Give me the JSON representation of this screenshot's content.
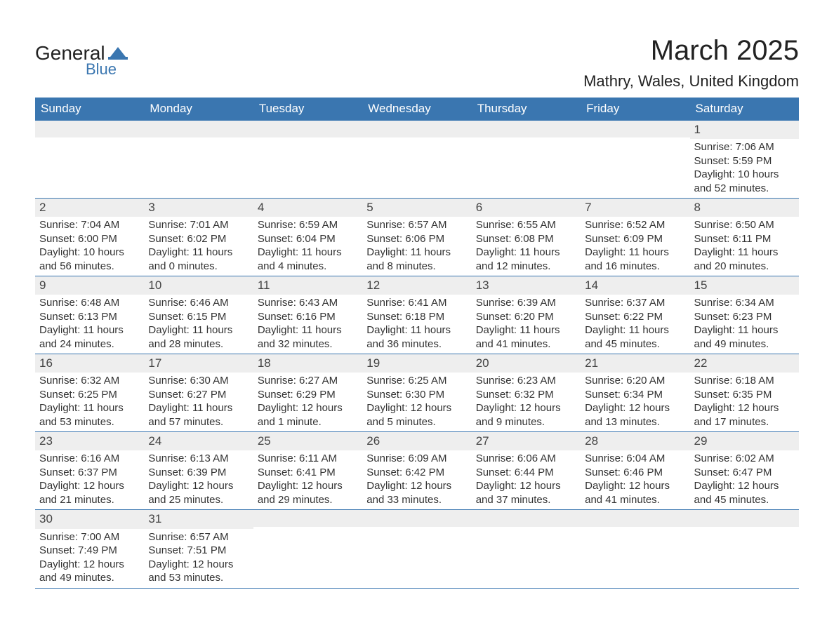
{
  "brand": {
    "word1": "General",
    "word2": "Blue",
    "accent_color": "#3a76b0",
    "text_color": "#222222"
  },
  "header": {
    "title": "March 2025",
    "location": "Mathry, Wales, United Kingdom",
    "title_fontsize": 40,
    "location_fontsize": 22
  },
  "calendar": {
    "type": "table",
    "header_bg": "#3a76b0",
    "header_fg": "#ffffff",
    "daybar_bg": "#eeeeee",
    "border_color": "#3a76b0",
    "text_color": "#333333",
    "body_fontsize": 15,
    "daynum_fontsize": 17,
    "days_of_week": [
      "Sunday",
      "Monday",
      "Tuesday",
      "Wednesday",
      "Thursday",
      "Friday",
      "Saturday"
    ],
    "weeks": [
      [
        null,
        null,
        null,
        null,
        null,
        null,
        {
          "n": "1",
          "sunrise": "Sunrise: 7:06 AM",
          "sunset": "Sunset: 5:59 PM",
          "daylight": "Daylight: 10 hours and 52 minutes."
        }
      ],
      [
        {
          "n": "2",
          "sunrise": "Sunrise: 7:04 AM",
          "sunset": "Sunset: 6:00 PM",
          "daylight": "Daylight: 10 hours and 56 minutes."
        },
        {
          "n": "3",
          "sunrise": "Sunrise: 7:01 AM",
          "sunset": "Sunset: 6:02 PM",
          "daylight": "Daylight: 11 hours and 0 minutes."
        },
        {
          "n": "4",
          "sunrise": "Sunrise: 6:59 AM",
          "sunset": "Sunset: 6:04 PM",
          "daylight": "Daylight: 11 hours and 4 minutes."
        },
        {
          "n": "5",
          "sunrise": "Sunrise: 6:57 AM",
          "sunset": "Sunset: 6:06 PM",
          "daylight": "Daylight: 11 hours and 8 minutes."
        },
        {
          "n": "6",
          "sunrise": "Sunrise: 6:55 AM",
          "sunset": "Sunset: 6:08 PM",
          "daylight": "Daylight: 11 hours and 12 minutes."
        },
        {
          "n": "7",
          "sunrise": "Sunrise: 6:52 AM",
          "sunset": "Sunset: 6:09 PM",
          "daylight": "Daylight: 11 hours and 16 minutes."
        },
        {
          "n": "8",
          "sunrise": "Sunrise: 6:50 AM",
          "sunset": "Sunset: 6:11 PM",
          "daylight": "Daylight: 11 hours and 20 minutes."
        }
      ],
      [
        {
          "n": "9",
          "sunrise": "Sunrise: 6:48 AM",
          "sunset": "Sunset: 6:13 PM",
          "daylight": "Daylight: 11 hours and 24 minutes."
        },
        {
          "n": "10",
          "sunrise": "Sunrise: 6:46 AM",
          "sunset": "Sunset: 6:15 PM",
          "daylight": "Daylight: 11 hours and 28 minutes."
        },
        {
          "n": "11",
          "sunrise": "Sunrise: 6:43 AM",
          "sunset": "Sunset: 6:16 PM",
          "daylight": "Daylight: 11 hours and 32 minutes."
        },
        {
          "n": "12",
          "sunrise": "Sunrise: 6:41 AM",
          "sunset": "Sunset: 6:18 PM",
          "daylight": "Daylight: 11 hours and 36 minutes."
        },
        {
          "n": "13",
          "sunrise": "Sunrise: 6:39 AM",
          "sunset": "Sunset: 6:20 PM",
          "daylight": "Daylight: 11 hours and 41 minutes."
        },
        {
          "n": "14",
          "sunrise": "Sunrise: 6:37 AM",
          "sunset": "Sunset: 6:22 PM",
          "daylight": "Daylight: 11 hours and 45 minutes."
        },
        {
          "n": "15",
          "sunrise": "Sunrise: 6:34 AM",
          "sunset": "Sunset: 6:23 PM",
          "daylight": "Daylight: 11 hours and 49 minutes."
        }
      ],
      [
        {
          "n": "16",
          "sunrise": "Sunrise: 6:32 AM",
          "sunset": "Sunset: 6:25 PM",
          "daylight": "Daylight: 11 hours and 53 minutes."
        },
        {
          "n": "17",
          "sunrise": "Sunrise: 6:30 AM",
          "sunset": "Sunset: 6:27 PM",
          "daylight": "Daylight: 11 hours and 57 minutes."
        },
        {
          "n": "18",
          "sunrise": "Sunrise: 6:27 AM",
          "sunset": "Sunset: 6:29 PM",
          "daylight": "Daylight: 12 hours and 1 minute."
        },
        {
          "n": "19",
          "sunrise": "Sunrise: 6:25 AM",
          "sunset": "Sunset: 6:30 PM",
          "daylight": "Daylight: 12 hours and 5 minutes."
        },
        {
          "n": "20",
          "sunrise": "Sunrise: 6:23 AM",
          "sunset": "Sunset: 6:32 PM",
          "daylight": "Daylight: 12 hours and 9 minutes."
        },
        {
          "n": "21",
          "sunrise": "Sunrise: 6:20 AM",
          "sunset": "Sunset: 6:34 PM",
          "daylight": "Daylight: 12 hours and 13 minutes."
        },
        {
          "n": "22",
          "sunrise": "Sunrise: 6:18 AM",
          "sunset": "Sunset: 6:35 PM",
          "daylight": "Daylight: 12 hours and 17 minutes."
        }
      ],
      [
        {
          "n": "23",
          "sunrise": "Sunrise: 6:16 AM",
          "sunset": "Sunset: 6:37 PM",
          "daylight": "Daylight: 12 hours and 21 minutes."
        },
        {
          "n": "24",
          "sunrise": "Sunrise: 6:13 AM",
          "sunset": "Sunset: 6:39 PM",
          "daylight": "Daylight: 12 hours and 25 minutes."
        },
        {
          "n": "25",
          "sunrise": "Sunrise: 6:11 AM",
          "sunset": "Sunset: 6:41 PM",
          "daylight": "Daylight: 12 hours and 29 minutes."
        },
        {
          "n": "26",
          "sunrise": "Sunrise: 6:09 AM",
          "sunset": "Sunset: 6:42 PM",
          "daylight": "Daylight: 12 hours and 33 minutes."
        },
        {
          "n": "27",
          "sunrise": "Sunrise: 6:06 AM",
          "sunset": "Sunset: 6:44 PM",
          "daylight": "Daylight: 12 hours and 37 minutes."
        },
        {
          "n": "28",
          "sunrise": "Sunrise: 6:04 AM",
          "sunset": "Sunset: 6:46 PM",
          "daylight": "Daylight: 12 hours and 41 minutes."
        },
        {
          "n": "29",
          "sunrise": "Sunrise: 6:02 AM",
          "sunset": "Sunset: 6:47 PM",
          "daylight": "Daylight: 12 hours and 45 minutes."
        }
      ],
      [
        {
          "n": "30",
          "sunrise": "Sunrise: 7:00 AM",
          "sunset": "Sunset: 7:49 PM",
          "daylight": "Daylight: 12 hours and 49 minutes."
        },
        {
          "n": "31",
          "sunrise": "Sunrise: 6:57 AM",
          "sunset": "Sunset: 7:51 PM",
          "daylight": "Daylight: 12 hours and 53 minutes."
        },
        null,
        null,
        null,
        null,
        null
      ]
    ]
  }
}
